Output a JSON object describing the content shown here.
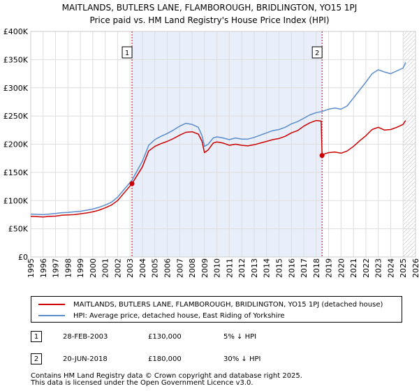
{
  "header": {
    "title_line1": "MAITLANDS, BUTLERS LANE, FLAMBOROUGH, BRIDLINGTON, YO15 1PJ",
    "title_line2": "Price paid vs. HM Land Registry's House Price Index (HPI)"
  },
  "chart_data": {
    "type": "line",
    "title": "MAITLANDS, BUTLERS LANE, FLAMBOROUGH, BRIDLINGTON, YO15 1PJ — Price paid vs. HM Land Registry's House Price Index (HPI)",
    "xlabel": "",
    "ylabel": "",
    "xlim": [
      1995,
      2026
    ],
    "ylim": [
      0,
      400000
    ],
    "x_ticks": [
      "1995",
      "1996",
      "1997",
      "1998",
      "1999",
      "2000",
      "2001",
      "2002",
      "2003",
      "2004",
      "2005",
      "2006",
      "2007",
      "2008",
      "2009",
      "2010",
      "2011",
      "2012",
      "2013",
      "2014",
      "2015",
      "2016",
      "2017",
      "2018",
      "2019",
      "2020",
      "2021",
      "2022",
      "2023",
      "2024",
      "2025",
      "2026"
    ],
    "y_ticks": [
      {
        "value": 0,
        "label": "£0"
      },
      {
        "value": 50000,
        "label": "£50K"
      },
      {
        "value": 100000,
        "label": "£100K"
      },
      {
        "value": 150000,
        "label": "£150K"
      },
      {
        "value": 200000,
        "label": "£200K"
      },
      {
        "value": 250000,
        "label": "£250K"
      },
      {
        "value": 300000,
        "label": "£300K"
      },
      {
        "value": 350000,
        "label": "£350K"
      },
      {
        "value": 400000,
        "label": "£400K"
      }
    ],
    "grid": true,
    "sale_period_shading": [
      2003.16,
      2018.47
    ],
    "future_hatch_from": 2025.0,
    "series": [
      {
        "name": "MAITLANDS, BUTLERS LANE, FLAMBOROUGH, BRIDLINGTON, YO15 1PJ (detached house)",
        "color": "#cc0000",
        "points": [
          [
            1995.0,
            72000
          ],
          [
            1995.5,
            71500
          ],
          [
            1996.0,
            71000
          ],
          [
            1996.5,
            72000
          ],
          [
            1997.0,
            72500
          ],
          [
            1997.5,
            74000
          ],
          [
            1998.0,
            74500
          ],
          [
            1998.5,
            75000
          ],
          [
            1999.0,
            76500
          ],
          [
            1999.5,
            78000
          ],
          [
            2000.0,
            80000
          ],
          [
            2000.5,
            83000
          ],
          [
            2001.0,
            87000
          ],
          [
            2001.5,
            92000
          ],
          [
            2002.0,
            100000
          ],
          [
            2002.5,
            113000
          ],
          [
            2003.0,
            126000
          ],
          [
            2003.16,
            130000
          ],
          [
            2003.5,
            142000
          ],
          [
            2004.0,
            160000
          ],
          [
            2004.5,
            188000
          ],
          [
            2005.0,
            196000
          ],
          [
            2005.5,
            201000
          ],
          [
            2006.0,
            205000
          ],
          [
            2006.5,
            210000
          ],
          [
            2007.0,
            216000
          ],
          [
            2007.5,
            221000
          ],
          [
            2008.0,
            222000
          ],
          [
            2008.5,
            218000
          ],
          [
            2008.8,
            205000
          ],
          [
            2009.0,
            185000
          ],
          [
            2009.3,
            190000
          ],
          [
            2009.7,
            202000
          ],
          [
            2010.0,
            204000
          ],
          [
            2010.5,
            202000
          ],
          [
            2011.0,
            198000
          ],
          [
            2011.5,
            200000
          ],
          [
            2012.0,
            198000
          ],
          [
            2012.5,
            197000
          ],
          [
            2013.0,
            199000
          ],
          [
            2013.5,
            202000
          ],
          [
            2014.0,
            205000
          ],
          [
            2014.5,
            208000
          ],
          [
            2015.0,
            210000
          ],
          [
            2015.5,
            214000
          ],
          [
            2016.0,
            220000
          ],
          [
            2016.5,
            224000
          ],
          [
            2017.0,
            232000
          ],
          [
            2017.5,
            238000
          ],
          [
            2018.0,
            242000
          ],
          [
            2018.4,
            241000
          ],
          [
            2018.47,
            180000
          ],
          [
            2018.7,
            183000
          ],
          [
            2019.0,
            185000
          ],
          [
            2019.5,
            186000
          ],
          [
            2020.0,
            184000
          ],
          [
            2020.5,
            188000
          ],
          [
            2021.0,
            196000
          ],
          [
            2021.5,
            206000
          ],
          [
            2022.0,
            215000
          ],
          [
            2022.5,
            226000
          ],
          [
            2023.0,
            230000
          ],
          [
            2023.5,
            225000
          ],
          [
            2024.0,
            226000
          ],
          [
            2024.5,
            230000
          ],
          [
            2025.0,
            235000
          ],
          [
            2025.2,
            242000
          ]
        ]
      },
      {
        "name": "HPI: Average price, detached house, East Riding of Yorkshire",
        "color": "#5b8ccc",
        "points": [
          [
            1995.0,
            76000
          ],
          [
            1995.5,
            75500
          ],
          [
            1996.0,
            75000
          ],
          [
            1996.5,
            76000
          ],
          [
            1997.0,
            77000
          ],
          [
            1997.5,
            78500
          ],
          [
            1998.0,
            79000
          ],
          [
            1998.5,
            80000
          ],
          [
            1999.0,
            81000
          ],
          [
            1999.5,
            83000
          ],
          [
            2000.0,
            85000
          ],
          [
            2000.5,
            88000
          ],
          [
            2001.0,
            92000
          ],
          [
            2001.5,
            97000
          ],
          [
            2002.0,
            106000
          ],
          [
            2002.5,
            119000
          ],
          [
            2003.0,
            132000
          ],
          [
            2003.16,
            136000
          ],
          [
            2003.5,
            150000
          ],
          [
            2004.0,
            170000
          ],
          [
            2004.5,
            198000
          ],
          [
            2005.0,
            208000
          ],
          [
            2005.5,
            214000
          ],
          [
            2006.0,
            219000
          ],
          [
            2006.5,
            225000
          ],
          [
            2007.0,
            232000
          ],
          [
            2007.5,
            237000
          ],
          [
            2008.0,
            235000
          ],
          [
            2008.5,
            230000
          ],
          [
            2008.8,
            215000
          ],
          [
            2009.0,
            196000
          ],
          [
            2009.3,
            200000
          ],
          [
            2009.7,
            211000
          ],
          [
            2010.0,
            213000
          ],
          [
            2010.5,
            211000
          ],
          [
            2011.0,
            208000
          ],
          [
            2011.5,
            211000
          ],
          [
            2012.0,
            209000
          ],
          [
            2012.5,
            209000
          ],
          [
            2013.0,
            212000
          ],
          [
            2013.5,
            216000
          ],
          [
            2014.0,
            220000
          ],
          [
            2014.5,
            224000
          ],
          [
            2015.0,
            226000
          ],
          [
            2015.5,
            230000
          ],
          [
            2016.0,
            236000
          ],
          [
            2016.5,
            240000
          ],
          [
            2017.0,
            246000
          ],
          [
            2017.5,
            252000
          ],
          [
            2018.0,
            256000
          ],
          [
            2018.47,
            258000
          ],
          [
            2019.0,
            262000
          ],
          [
            2019.5,
            264000
          ],
          [
            2020.0,
            262000
          ],
          [
            2020.5,
            268000
          ],
          [
            2021.0,
            282000
          ],
          [
            2021.5,
            296000
          ],
          [
            2022.0,
            310000
          ],
          [
            2022.5,
            325000
          ],
          [
            2023.0,
            332000
          ],
          [
            2023.5,
            328000
          ],
          [
            2024.0,
            325000
          ],
          [
            2024.5,
            330000
          ],
          [
            2025.0,
            335000
          ],
          [
            2025.2,
            345000
          ]
        ]
      }
    ],
    "annotations": [
      {
        "label": "1",
        "x": 2003.16,
        "y": 130000
      },
      {
        "label": "2",
        "x": 2018.47,
        "y": 180000
      }
    ]
  },
  "legend": {
    "property_label": "MAITLANDS, BUTLERS LANE, FLAMBOROUGH, BRIDLINGTON, YO15 1PJ (detached house)",
    "hpi_label": "HPI: Average price, detached house, East Riding of Yorkshire"
  },
  "transactions": [
    {
      "badge": "1",
      "date": "28-FEB-2003",
      "price": "£130,000",
      "hpi": "5% ↓ HPI"
    },
    {
      "badge": "2",
      "date": "20-JUN-2018",
      "price": "£180,000",
      "hpi": "30% ↓ HPI"
    }
  ],
  "footer": {
    "line1": "Contains HM Land Registry data © Crown copyright and database right 2025.",
    "line2": "This data is licensed under the Open Government Licence v3.0."
  },
  "colors": {
    "property": "#cc0000",
    "hpi": "#5b8ccc",
    "grid": "#dddddd",
    "shade": "#e8eefa",
    "marker_line": "#cc0000"
  }
}
